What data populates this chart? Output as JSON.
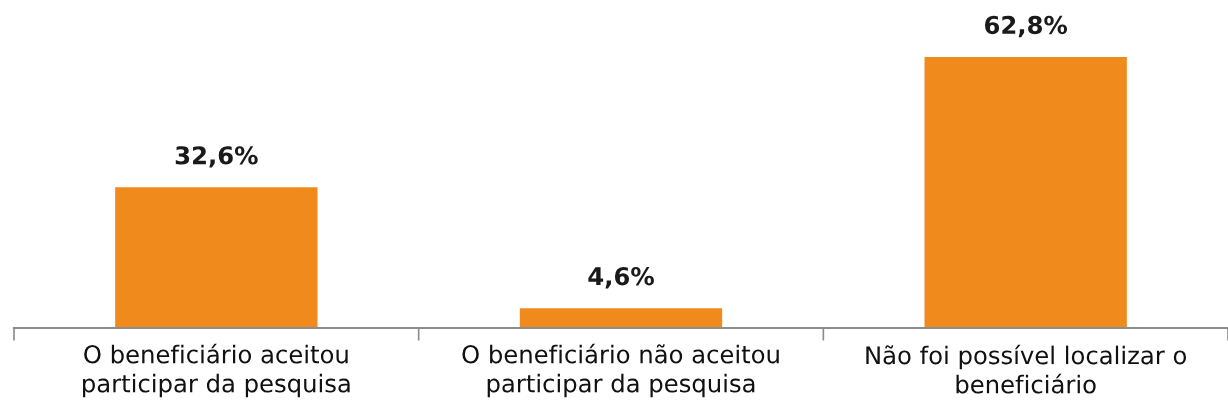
{
  "chart_data": {
    "type": "bar",
    "categories": [
      "O beneficiário aceitou\nparticipar da pesquisa",
      "O beneficiário não aceitou\nparticipar da pesquisa",
      "Não foi possível localizar o\nbeneficiário"
    ],
    "values": [
      32.6,
      4.6,
      62.8
    ],
    "value_labels": [
      "32,6%",
      "4,6%",
      "62,8%"
    ],
    "color": "#f08a1c",
    "tick_labels": "x"
  }
}
